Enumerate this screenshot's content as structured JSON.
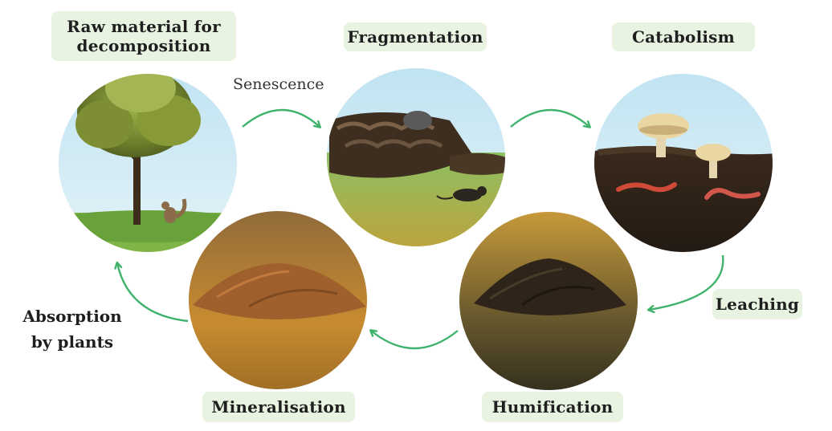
{
  "stages": {
    "raw_material": {
      "line1": "Raw material for",
      "line2": "decomposition"
    },
    "fragmentation": "Fragmentation",
    "catabolism": "Catabolism",
    "humification": "Humification",
    "mineralisation": "Mineralisation"
  },
  "transitions": {
    "senescence": "Senescence",
    "leaching": "Leaching",
    "absorption": {
      "line1": "Absorption",
      "line2": "by plants"
    }
  },
  "colors": {
    "label_bg": "#e8f3e2",
    "arrow": "#3fb36b",
    "sky": "#cfe8f3",
    "grass": "#6aa84f",
    "soil_dark": "#3b2f22",
    "soil_light": "#b06f34"
  }
}
